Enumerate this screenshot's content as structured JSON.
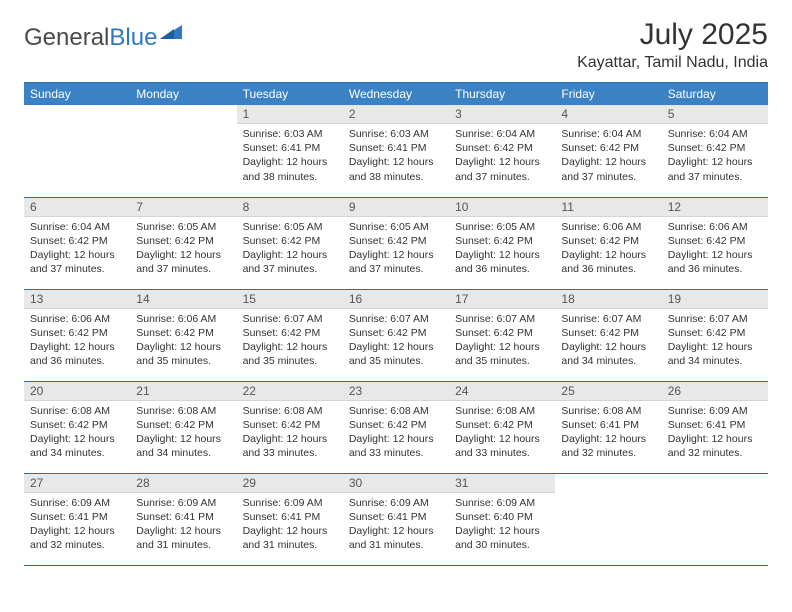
{
  "logo": {
    "text1": "General",
    "text2": "Blue"
  },
  "title": "July 2025",
  "location": "Kayattar, Tamil Nadu, India",
  "colors": {
    "header_bg": "#3a82c4",
    "header_text": "#ffffff",
    "daynum_bg": "#e8e8e8",
    "daynum_text": "#555555",
    "body_text": "#333333",
    "rule": "#2f6fa8",
    "logo_gray": "#4a4a4a",
    "logo_blue": "#2f78c2",
    "page_bg": "#ffffff"
  },
  "typography": {
    "month_title_size_pt": 22,
    "location_size_pt": 12,
    "weekday_size_pt": 9,
    "daynum_size_pt": 9,
    "cell_text_size_pt": 8
  },
  "weekdays": [
    "Sunday",
    "Monday",
    "Tuesday",
    "Wednesday",
    "Thursday",
    "Friday",
    "Saturday"
  ],
  "weeks": [
    [
      null,
      null,
      {
        "n": "1",
        "sr": "6:03 AM",
        "ss": "6:41 PM",
        "dl": "12 hours and 38 minutes."
      },
      {
        "n": "2",
        "sr": "6:03 AM",
        "ss": "6:41 PM",
        "dl": "12 hours and 38 minutes."
      },
      {
        "n": "3",
        "sr": "6:04 AM",
        "ss": "6:42 PM",
        "dl": "12 hours and 37 minutes."
      },
      {
        "n": "4",
        "sr": "6:04 AM",
        "ss": "6:42 PM",
        "dl": "12 hours and 37 minutes."
      },
      {
        "n": "5",
        "sr": "6:04 AM",
        "ss": "6:42 PM",
        "dl": "12 hours and 37 minutes."
      }
    ],
    [
      {
        "n": "6",
        "sr": "6:04 AM",
        "ss": "6:42 PM",
        "dl": "12 hours and 37 minutes."
      },
      {
        "n": "7",
        "sr": "6:05 AM",
        "ss": "6:42 PM",
        "dl": "12 hours and 37 minutes."
      },
      {
        "n": "8",
        "sr": "6:05 AM",
        "ss": "6:42 PM",
        "dl": "12 hours and 37 minutes."
      },
      {
        "n": "9",
        "sr": "6:05 AM",
        "ss": "6:42 PM",
        "dl": "12 hours and 37 minutes."
      },
      {
        "n": "10",
        "sr": "6:05 AM",
        "ss": "6:42 PM",
        "dl": "12 hours and 36 minutes."
      },
      {
        "n": "11",
        "sr": "6:06 AM",
        "ss": "6:42 PM",
        "dl": "12 hours and 36 minutes."
      },
      {
        "n": "12",
        "sr": "6:06 AM",
        "ss": "6:42 PM",
        "dl": "12 hours and 36 minutes."
      }
    ],
    [
      {
        "n": "13",
        "sr": "6:06 AM",
        "ss": "6:42 PM",
        "dl": "12 hours and 36 minutes."
      },
      {
        "n": "14",
        "sr": "6:06 AM",
        "ss": "6:42 PM",
        "dl": "12 hours and 35 minutes."
      },
      {
        "n": "15",
        "sr": "6:07 AM",
        "ss": "6:42 PM",
        "dl": "12 hours and 35 minutes."
      },
      {
        "n": "16",
        "sr": "6:07 AM",
        "ss": "6:42 PM",
        "dl": "12 hours and 35 minutes."
      },
      {
        "n": "17",
        "sr": "6:07 AM",
        "ss": "6:42 PM",
        "dl": "12 hours and 35 minutes."
      },
      {
        "n": "18",
        "sr": "6:07 AM",
        "ss": "6:42 PM",
        "dl": "12 hours and 34 minutes."
      },
      {
        "n": "19",
        "sr": "6:07 AM",
        "ss": "6:42 PM",
        "dl": "12 hours and 34 minutes."
      }
    ],
    [
      {
        "n": "20",
        "sr": "6:08 AM",
        "ss": "6:42 PM",
        "dl": "12 hours and 34 minutes."
      },
      {
        "n": "21",
        "sr": "6:08 AM",
        "ss": "6:42 PM",
        "dl": "12 hours and 34 minutes."
      },
      {
        "n": "22",
        "sr": "6:08 AM",
        "ss": "6:42 PM",
        "dl": "12 hours and 33 minutes."
      },
      {
        "n": "23",
        "sr": "6:08 AM",
        "ss": "6:42 PM",
        "dl": "12 hours and 33 minutes."
      },
      {
        "n": "24",
        "sr": "6:08 AM",
        "ss": "6:42 PM",
        "dl": "12 hours and 33 minutes."
      },
      {
        "n": "25",
        "sr": "6:08 AM",
        "ss": "6:41 PM",
        "dl": "12 hours and 32 minutes."
      },
      {
        "n": "26",
        "sr": "6:09 AM",
        "ss": "6:41 PM",
        "dl": "12 hours and 32 minutes."
      }
    ],
    [
      {
        "n": "27",
        "sr": "6:09 AM",
        "ss": "6:41 PM",
        "dl": "12 hours and 32 minutes."
      },
      {
        "n": "28",
        "sr": "6:09 AM",
        "ss": "6:41 PM",
        "dl": "12 hours and 31 minutes."
      },
      {
        "n": "29",
        "sr": "6:09 AM",
        "ss": "6:41 PM",
        "dl": "12 hours and 31 minutes."
      },
      {
        "n": "30",
        "sr": "6:09 AM",
        "ss": "6:41 PM",
        "dl": "12 hours and 31 minutes."
      },
      {
        "n": "31",
        "sr": "6:09 AM",
        "ss": "6:40 PM",
        "dl": "12 hours and 30 minutes."
      },
      null,
      null
    ]
  ],
  "labels": {
    "sunrise": "Sunrise:",
    "sunset": "Sunset:",
    "daylight": "Daylight:"
  }
}
